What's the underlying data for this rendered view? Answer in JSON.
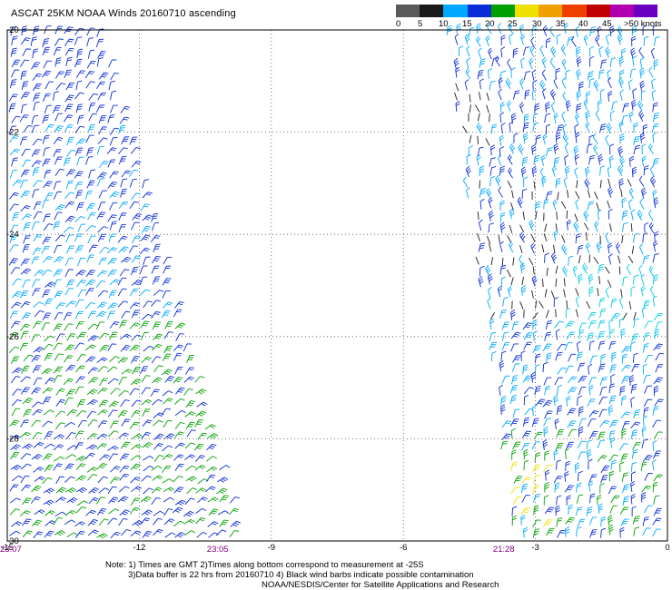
{
  "map": {
    "title": "ASCAT 25KM NOAA Winds 20160710 ascending",
    "legend": {
      "colors": [
        "#5a5a5a",
        "#1a1a1a",
        "#00a8ff",
        "#0a2cd8",
        "#00a000",
        "#f0e000",
        "#f0a000",
        "#f04000",
        "#c00000",
        "#b000b0",
        "#6a00c0"
      ],
      "tick_labels": [
        "0",
        "5",
        "10",
        "15",
        "20",
        "25",
        "30",
        "35",
        "40",
        "45",
        ">50 knots"
      ]
    },
    "x_axis": {
      "ticks": [
        -15,
        -12,
        -9,
        -6,
        -3,
        0
      ],
      "tick_labels": [
        "-15",
        "-12",
        "-9",
        "-6",
        "-3",
        "0"
      ],
      "range": [
        -15,
        0
      ]
    },
    "y_axis": {
      "ticks": [
        -20,
        -22,
        -24,
        -26,
        -28,
        -30
      ],
      "tick_labels": [
        "-20",
        "-22",
        "-24",
        "-26",
        "-28",
        "-30"
      ],
      "range": [
        -30,
        -20
      ]
    },
    "swath_times": [
      {
        "label": "23:07",
        "lon": -15
      },
      {
        "label": "23:05",
        "lon": -10.3
      },
      {
        "label": "21:28",
        "lon": -3.8
      }
    ],
    "grid": "dotted",
    "notes": [
      "Note: 1) Times are GMT 2)Times along bottom correspond to measurement at -25S",
      "3)Data buffer is 22 hrs from 20160710 4) Black wind barbs indicate possible contamination",
      "NOAA/NESDIS/Center for Satellite Applications and Research"
    ]
  }
}
